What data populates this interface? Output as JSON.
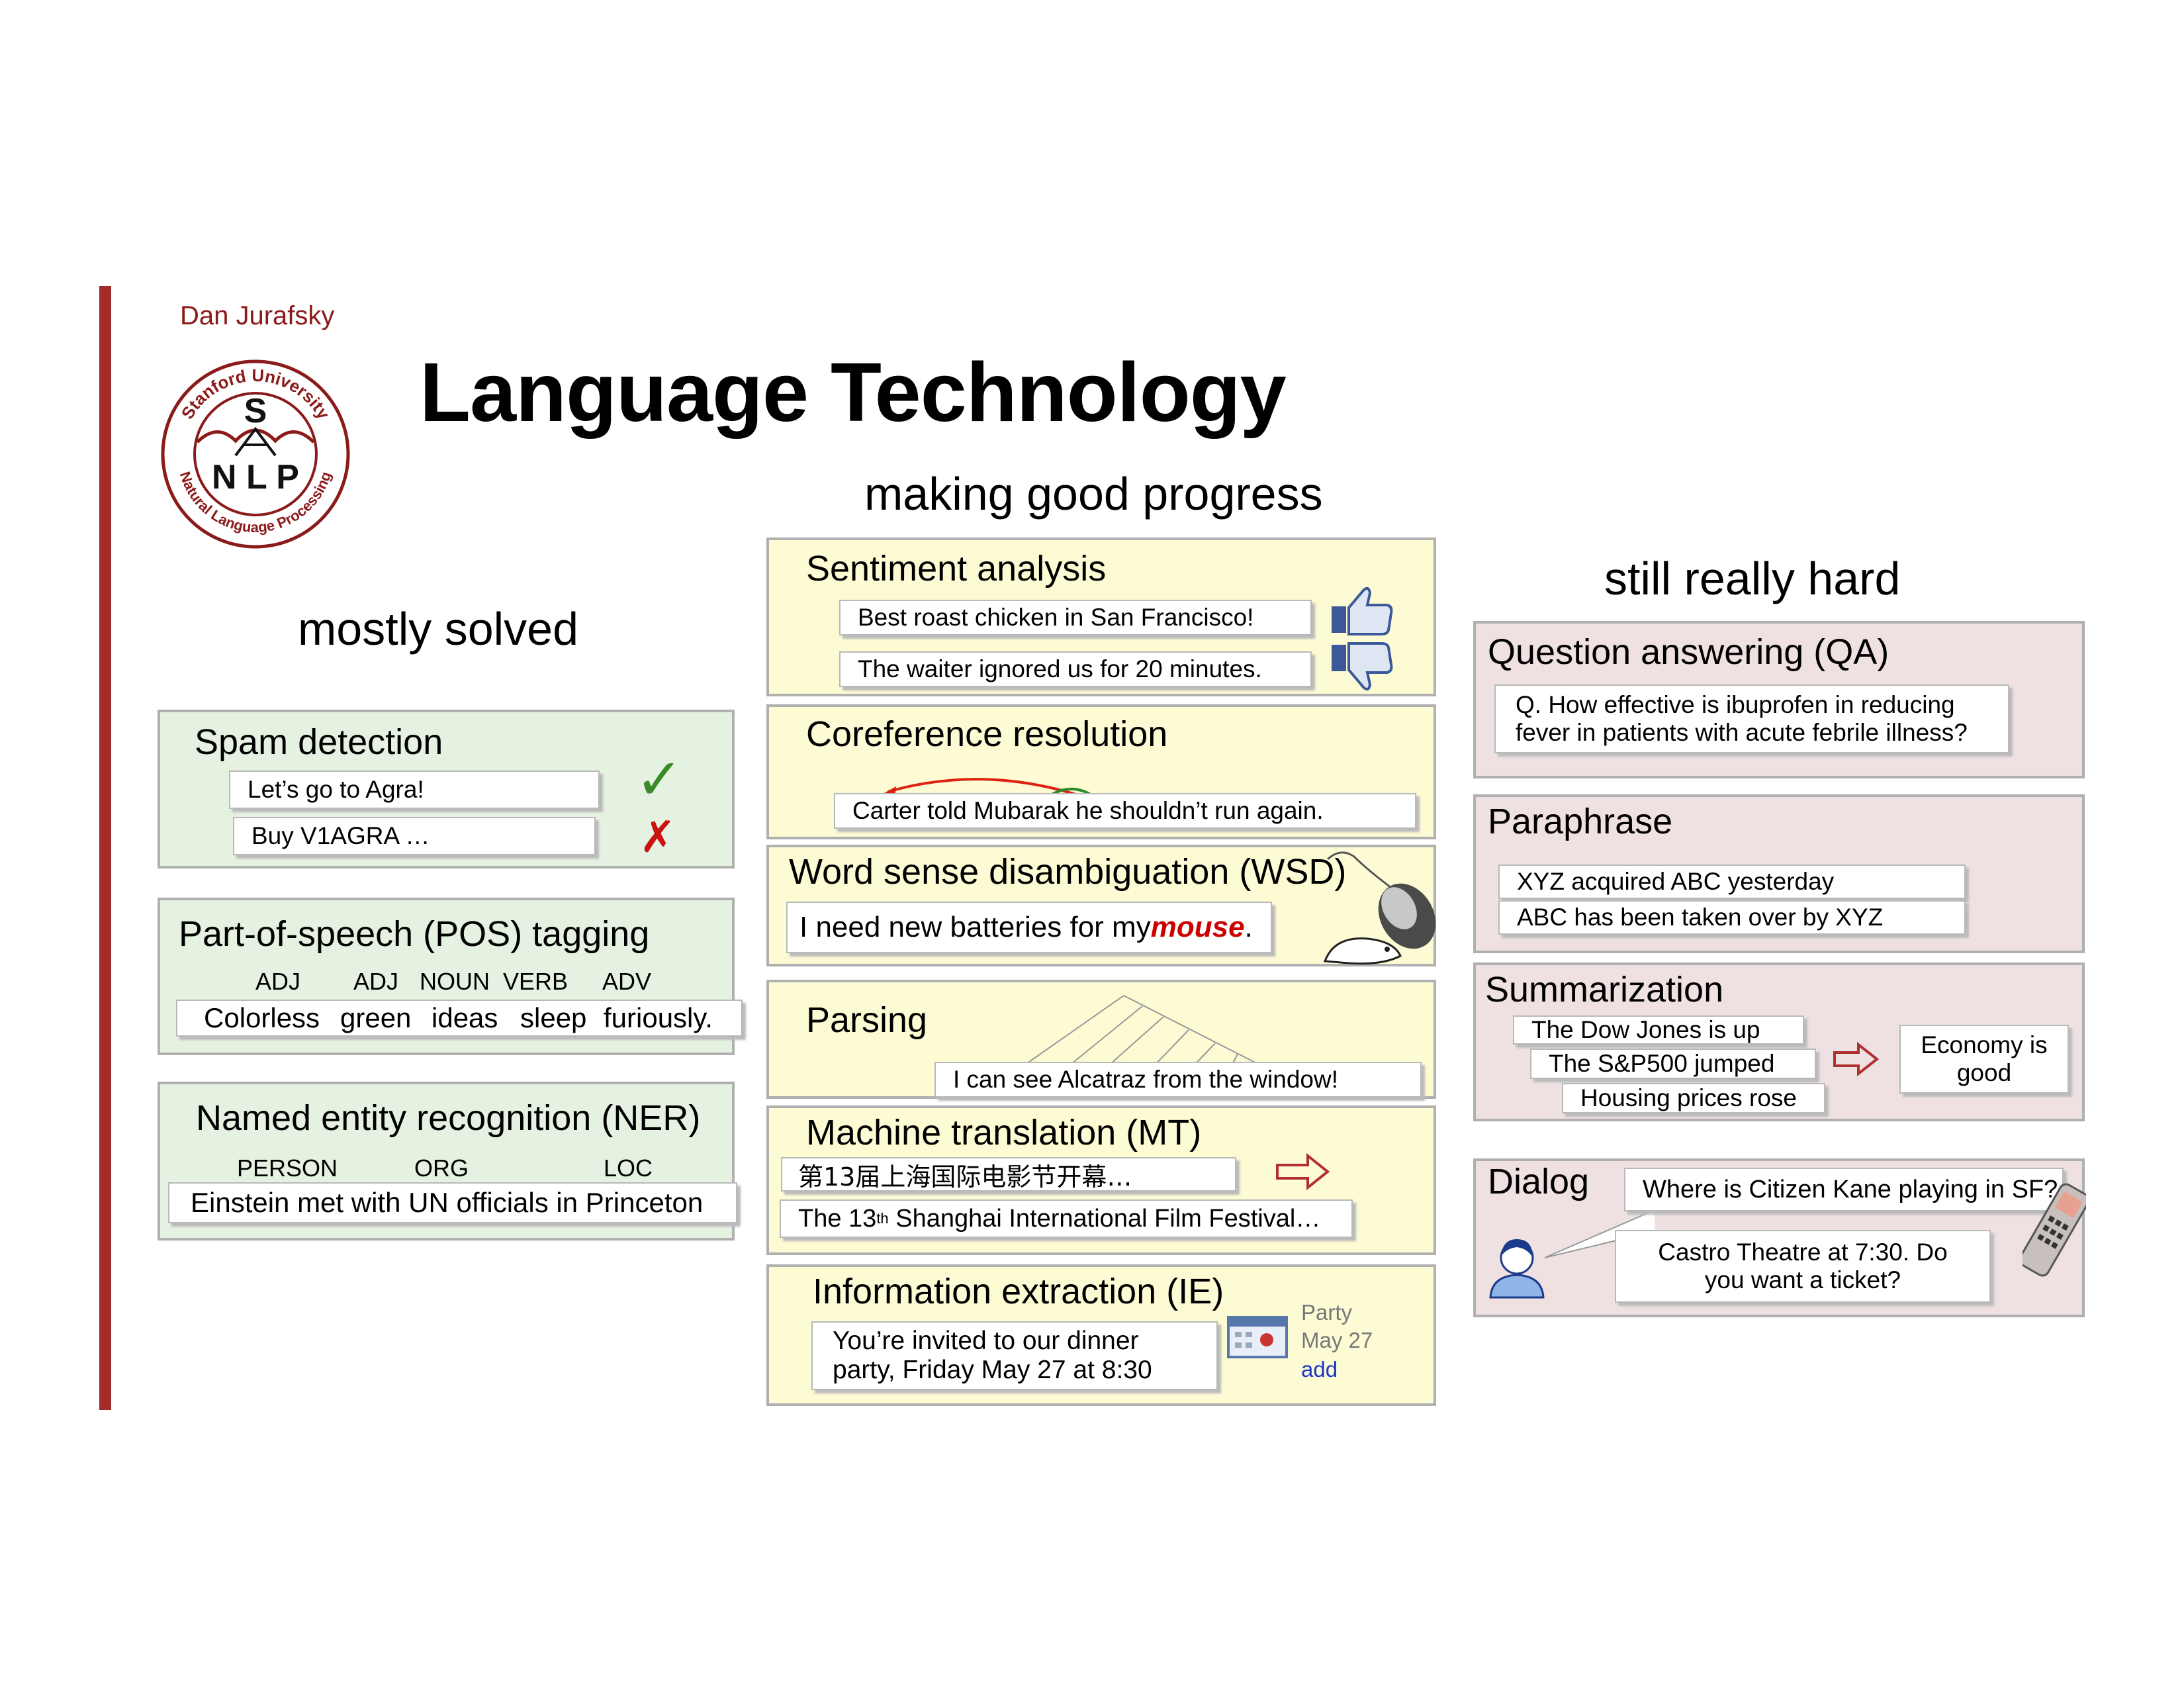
{
  "header": {
    "author": "Dan Jurafsky",
    "title": "Language Technology",
    "logo": {
      "arc_top": "Stanford University",
      "arc_bottom": "Natural Language Processing",
      "letter_s": "S",
      "letters_nlp": "N L P"
    }
  },
  "columns": {
    "left": "mostly solved",
    "middle": "making good progress",
    "right": "still really hard"
  },
  "spam": {
    "title": "Spam detection",
    "ex1": "Let’s go to Agra!",
    "ex2": "Buy V1AGRA …",
    "good": "✓",
    "bad": "✗"
  },
  "pos": {
    "title": "Part-of-speech (POS) tagging",
    "tags": [
      "ADJ",
      "ADJ",
      "NOUN",
      "VERB",
      "ADV"
    ],
    "words": [
      "Colorless",
      "green",
      "ideas",
      "sleep",
      "furiously."
    ]
  },
  "ner": {
    "title": "Named entity recognition (NER)",
    "tags": [
      "PERSON",
      "ORG",
      "LOC"
    ],
    "sentence": "Einstein met with UN officials in Princeton"
  },
  "sentiment": {
    "title": "Sentiment analysis",
    "ex1": "Best roast chicken in San Francisco!",
    "ex2": "The waiter ignored us for 20 minutes.",
    "icon1": "thumbs-up-icon",
    "icon2": "thumbs-down-icon"
  },
  "coref": {
    "title": "Coreference resolution",
    "sentence": "Carter told Mubarak he shouldn’t run again."
  },
  "wsd": {
    "title": "Word sense disambiguation (WSD)",
    "pre": "I need new batteries for my ",
    "word": "mouse",
    "post": ".",
    "word_color": "#cc0000"
  },
  "parsing": {
    "title": "Parsing",
    "sentence": "I can see Alcatraz from the window!"
  },
  "mt": {
    "title": "Machine translation (MT)",
    "source": "第13届上海国际电影节开幕…",
    "target_pre": "The 13",
    "target_sup": "th",
    "target_post": " Shanghai International Film Festival…"
  },
  "ie": {
    "title": "Information extraction (IE)",
    "line1": "You’re invited to our dinner",
    "line2": "party, Friday May 27 at 8:30",
    "cal_title": "Party",
    "cal_date": "May 27",
    "cal_add": "add"
  },
  "qa": {
    "title": "Question answering (QA)",
    "line1": "Q. How effective is ibuprofen in reducing",
    "line2": "fever in patients with acute febrile illness?"
  },
  "para": {
    "title": "Paraphrase",
    "ex1": "XYZ acquired ABC yesterday",
    "ex2": "ABC has been taken over by XYZ"
  },
  "summ": {
    "title": "Summarization",
    "s1": "The Dow Jones is up",
    "s2": "The S&P500 jumped",
    "s3": "Housing prices rose",
    "out1": "Economy is",
    "out2": "good"
  },
  "dialog": {
    "title": "Dialog",
    "q": "Where is Citizen Kane playing in SF?",
    "a1": "Castro Theatre at 7:30. Do",
    "a2": "you want a ticket?"
  },
  "colors": {
    "accent": "#a52a2a",
    "green_box": "#e6f2e1",
    "yellow_box": "#fdfbd4",
    "pink_box": "#efe1e1",
    "arrow": "#b03030"
  }
}
